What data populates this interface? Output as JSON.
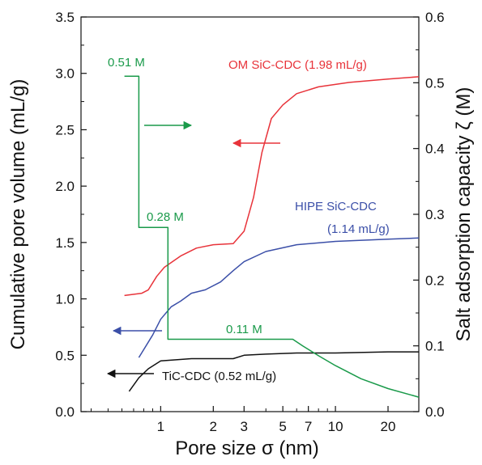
{
  "chart_data": {
    "type": "line",
    "xlabel": "Pore size σ (nm)",
    "ylabel_left": "Cumulative pore volume (mL/g)",
    "ylabel_right": "Salt adsorption capacity ζ (M)",
    "x_scale": "log",
    "xlim": [
      0.35,
      30
    ],
    "ylim_left": [
      0,
      3.5
    ],
    "ylim_right": [
      0,
      0.6
    ],
    "x_ticks": [
      1,
      2,
      3,
      5,
      7,
      10,
      20
    ],
    "y_ticks_left": [
      0.0,
      0.5,
      1.0,
      1.5,
      2.0,
      2.5,
      3.0,
      3.5
    ],
    "y_ticks_right": [
      0.0,
      0.1,
      0.2,
      0.3,
      0.4,
      0.5,
      0.6
    ],
    "grid": false,
    "series": [
      {
        "name": "OM SiC-CDC (1.98 mL/g)",
        "axis": "left",
        "color": "#e8333a",
        "points": [
          [
            0.62,
            1.03
          ],
          [
            0.78,
            1.05
          ],
          [
            0.85,
            1.08
          ],
          [
            0.95,
            1.2
          ],
          [
            1.05,
            1.28
          ],
          [
            1.3,
            1.38
          ],
          [
            1.6,
            1.45
          ],
          [
            2,
            1.48
          ],
          [
            2.6,
            1.49
          ],
          [
            3.0,
            1.6
          ],
          [
            3.4,
            1.9
          ],
          [
            3.8,
            2.3
          ],
          [
            4.3,
            2.6
          ],
          [
            5.0,
            2.72
          ],
          [
            6,
            2.82
          ],
          [
            8,
            2.88
          ],
          [
            12,
            2.92
          ],
          [
            20,
            2.95
          ],
          [
            30,
            2.97
          ]
        ]
      },
      {
        "name": "HIPE SiC-CDC\n(1.14 mL/g)",
        "axis": "left",
        "color": "#3b4fa8",
        "points": [
          [
            0.75,
            0.48
          ],
          [
            0.9,
            0.68
          ],
          [
            1.0,
            0.82
          ],
          [
            1.15,
            0.93
          ],
          [
            1.3,
            0.98
          ],
          [
            1.5,
            1.05
          ],
          [
            1.8,
            1.08
          ],
          [
            2.2,
            1.15
          ],
          [
            2.6,
            1.25
          ],
          [
            3.0,
            1.33
          ],
          [
            4,
            1.42
          ],
          [
            6,
            1.48
          ],
          [
            10,
            1.51
          ],
          [
            20,
            1.53
          ],
          [
            30,
            1.54
          ]
        ]
      },
      {
        "name": "TiC-CDC (0.52 mL/g)",
        "axis": "left",
        "color": "#111111",
        "points": [
          [
            0.66,
            0.18
          ],
          [
            0.75,
            0.3
          ],
          [
            0.85,
            0.38
          ],
          [
            1.0,
            0.45
          ],
          [
            1.5,
            0.47
          ],
          [
            2.2,
            0.47
          ],
          [
            2.6,
            0.47
          ],
          [
            3.0,
            0.5
          ],
          [
            4,
            0.51
          ],
          [
            6,
            0.52
          ],
          [
            10,
            0.52
          ],
          [
            20,
            0.53
          ],
          [
            30,
            0.53
          ]
        ]
      },
      {
        "name": "Salt adsorption capacity",
        "axis": "right",
        "color": "#1a9a4a",
        "points": [
          [
            0.62,
            0.51
          ],
          [
            0.75,
            0.51
          ],
          [
            0.75,
            0.28
          ],
          [
            1.1,
            0.28
          ],
          [
            1.1,
            0.11
          ],
          [
            5.7,
            0.11
          ],
          [
            6.5,
            0.1
          ],
          [
            8,
            0.085
          ],
          [
            10,
            0.07
          ],
          [
            14,
            0.05
          ],
          [
            20,
            0.035
          ],
          [
            30,
            0.022
          ]
        ]
      }
    ],
    "annotations": {
      "om_label": "OM SiC-CDC (1.98 mL/g)",
      "hipe_label_1": "HIPE SiC-CDC",
      "hipe_label_2": "(1.14 mL/g)",
      "tic_label": "TiC-CDC (0.52 mL/g)",
      "salt_051": "0.51 M",
      "salt_028": "0.28 M",
      "salt_011": "0.11 M"
    }
  }
}
